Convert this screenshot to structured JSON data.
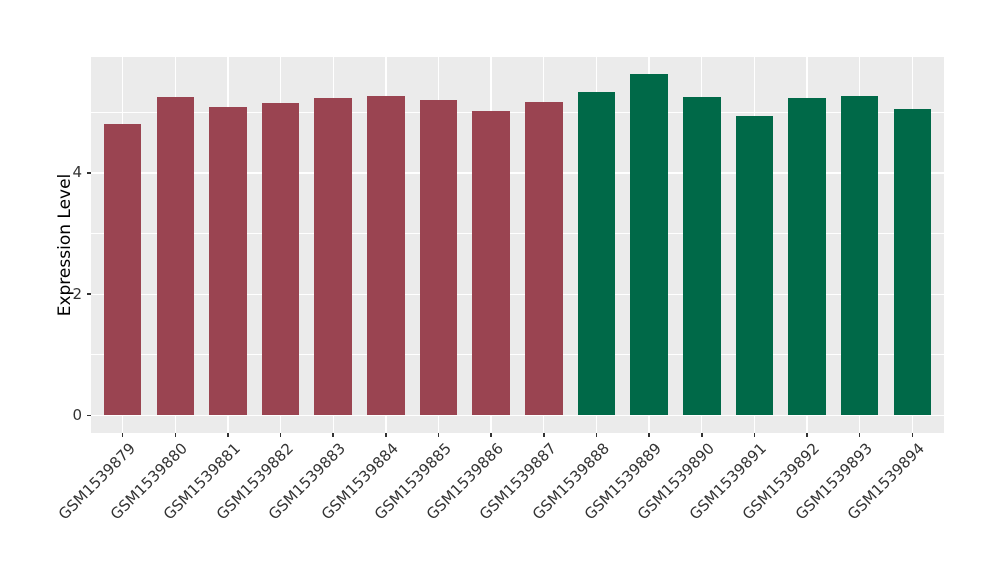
{
  "chart_data": {
    "type": "bar",
    "title": "",
    "xlabel": "",
    "ylabel": "Expression Level",
    "categories": [
      "GSM1539879",
      "GSM1539880",
      "GSM1539881",
      "GSM1539882",
      "GSM1539883",
      "GSM1539884",
      "GSM1539885",
      "GSM1539886",
      "GSM1539887",
      "GSM1539888",
      "GSM1539889",
      "GSM1539890",
      "GSM1539891",
      "GSM1539892",
      "GSM1539893",
      "GSM1539894"
    ],
    "values": [
      4.8,
      5.25,
      5.09,
      5.15,
      5.23,
      5.26,
      5.2,
      5.02,
      5.17,
      5.34,
      5.63,
      5.25,
      4.94,
      5.23,
      5.26,
      5.06
    ],
    "bar_colors": [
      "#9A4451",
      "#9A4451",
      "#9A4451",
      "#9A4451",
      "#9A4451",
      "#9A4451",
      "#9A4451",
      "#9A4451",
      "#9A4451",
      "#006948",
      "#006948",
      "#006948",
      "#006948",
      "#006948",
      "#006948",
      "#006948"
    ],
    "group_colors": {
      "maroon": "#9A4451",
      "green": "#006948"
    },
    "y_ticks": [
      "0",
      "2",
      "4"
    ],
    "y_tick_values": [
      0,
      2,
      4
    ],
    "y_minor_tick_values": [
      1,
      3,
      5
    ],
    "ylim": [
      -0.29,
      5.91
    ],
    "grid": true,
    "legend": "none",
    "panel_background": "#EBEBEB",
    "gridline_color": "#FFFFFF",
    "axis_text_color": "#333333",
    "axis_title_color": "#000000"
  }
}
